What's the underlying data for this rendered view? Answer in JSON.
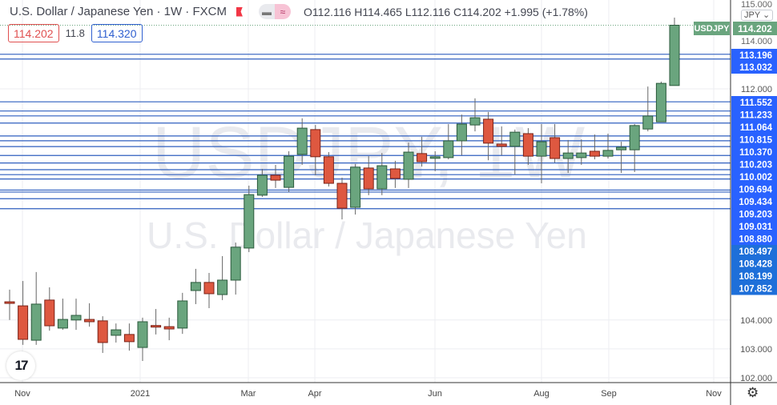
{
  "header": {
    "title": "U.S. Dollar / Japanese Yen · 1W · FXCM",
    "open": "O112.116",
    "high": "H114.465",
    "low": "L112.116",
    "close": "C114.202",
    "change": "+1.995 (+1.78%)"
  },
  "legend": {
    "bid": "114.202",
    "spread": "11.8",
    "ask": "114.320"
  },
  "watermark": {
    "symbol": "USDJPY, 1W",
    "description": "U.S. Dollar / Japanese Yen"
  },
  "price_scale": {
    "currency_button": "JPY ⌄",
    "top_tick": "115.000",
    "ticks": [
      "114.000",
      "112.000",
      "104.000",
      "103.000",
      "102.000"
    ],
    "current_symbol": "USDJPY",
    "current_price": "114.202"
  },
  "time_axis": [
    "Nov",
    "2021",
    "Mar",
    "Apr",
    "Jun",
    "Aug",
    "Sep",
    "Nov"
  ],
  "colors": {
    "up": "#6aa57e",
    "down": "#de5840",
    "line": "#2f5fbf",
    "label": "#2962ff",
    "label_alt": "#1e6fd9",
    "bid": "#e05050",
    "ask": "#3060d0"
  },
  "icons": {
    "settings": "gear-icon",
    "logo": "tradingview-logo"
  },
  "chart_data": {
    "type": "candlestick",
    "title": "U.S. Dollar / Japanese Yen · 1W · FXCM",
    "ylim": [
      101.7,
      115.1
    ],
    "x_labels": [
      "Nov",
      "2021",
      "Mar",
      "Apr",
      "Jun",
      "Aug",
      "Sep",
      "Nov"
    ],
    "ohlc": [
      [
        104.63,
        105.05,
        104.0,
        104.6
      ],
      [
        104.49,
        105.35,
        103.14,
        103.33
      ],
      [
        103.3,
        105.66,
        103.14,
        104.55
      ],
      [
        104.69,
        105.13,
        103.63,
        103.8
      ],
      [
        103.72,
        104.74,
        103.66,
        104.02
      ],
      [
        104.0,
        104.74,
        103.66,
        104.16
      ],
      [
        104.02,
        104.58,
        103.77,
        103.94
      ],
      [
        103.97,
        104.13,
        102.86,
        103.22
      ],
      [
        103.47,
        103.88,
        103.22,
        103.66
      ],
      [
        103.5,
        103.88,
        102.94,
        103.25
      ],
      [
        103.05,
        104.08,
        102.58,
        103.94
      ],
      [
        103.81,
        104.38,
        103.5,
        103.8
      ],
      [
        103.77,
        104.08,
        103.3,
        103.69
      ],
      [
        103.72,
        104.94,
        103.52,
        104.66
      ],
      [
        105.02,
        105.77,
        104.55,
        105.3
      ],
      [
        105.3,
        105.63,
        104.41,
        104.91
      ],
      [
        104.88,
        106.21,
        104.69,
        105.38
      ],
      [
        105.38,
        106.68,
        104.88,
        106.52
      ],
      [
        106.49,
        108.65,
        106.35,
        108.34
      ],
      [
        108.32,
        109.23,
        108.26,
        109.01
      ],
      [
        109.01,
        109.37,
        108.57,
        108.84
      ],
      [
        108.59,
        109.84,
        108.43,
        109.67
      ],
      [
        109.73,
        110.98,
        109.37,
        110.64
      ],
      [
        110.59,
        110.75,
        109.01,
        109.65
      ],
      [
        109.65,
        109.81,
        108.62,
        108.73
      ],
      [
        108.73,
        108.93,
        107.48,
        107.87
      ],
      [
        107.9,
        109.4,
        107.65,
        109.29
      ],
      [
        109.26,
        109.67,
        108.32,
        108.54
      ],
      [
        108.54,
        109.78,
        108.32,
        109.34
      ],
      [
        109.23,
        109.51,
        108.57,
        108.9
      ],
      [
        108.87,
        110.14,
        108.57,
        109.81
      ],
      [
        109.76,
        110.34,
        109.31,
        109.48
      ],
      [
        109.6,
        109.84,
        109.15,
        109.65
      ],
      [
        109.62,
        110.78,
        109.56,
        110.2
      ],
      [
        110.2,
        111.11,
        109.7,
        110.78
      ],
      [
        110.75,
        111.67,
        110.53,
        111.0
      ],
      [
        110.95,
        111.2,
        109.53,
        110.12
      ],
      [
        110.09,
        110.7,
        109.7,
        110.01
      ],
      [
        110.01,
        110.59,
        109.04,
        110.5
      ],
      [
        110.45,
        110.64,
        109.37,
        109.67
      ],
      [
        109.67,
        110.78,
        108.73,
        110.17
      ],
      [
        110.31,
        110.78,
        109.45,
        109.59
      ],
      [
        109.59,
        110.23,
        109.09,
        109.78
      ],
      [
        109.62,
        110.25,
        109.37,
        109.78
      ],
      [
        109.84,
        110.42,
        109.56,
        109.67
      ],
      [
        109.67,
        110.45,
        109.59,
        109.87
      ],
      [
        109.89,
        110.17,
        109.09,
        109.98
      ],
      [
        109.89,
        110.78,
        109.12,
        110.73
      ],
      [
        110.61,
        112.08,
        110.53,
        111.06
      ],
      [
        110.86,
        112.25,
        110.86,
        112.19
      ],
      [
        112.116,
        114.465,
        112.116,
        114.202
      ]
    ],
    "horizontal_levels": [
      "113.196",
      "113.032",
      "111.552",
      "111.233",
      "111.064",
      "110.815",
      "110.370",
      "110.203",
      "110.002",
      "109.694",
      "109.434",
      "109.203",
      "109.031",
      "108.880",
      "108.497",
      "108.428",
      "108.199",
      "107.852"
    ]
  }
}
